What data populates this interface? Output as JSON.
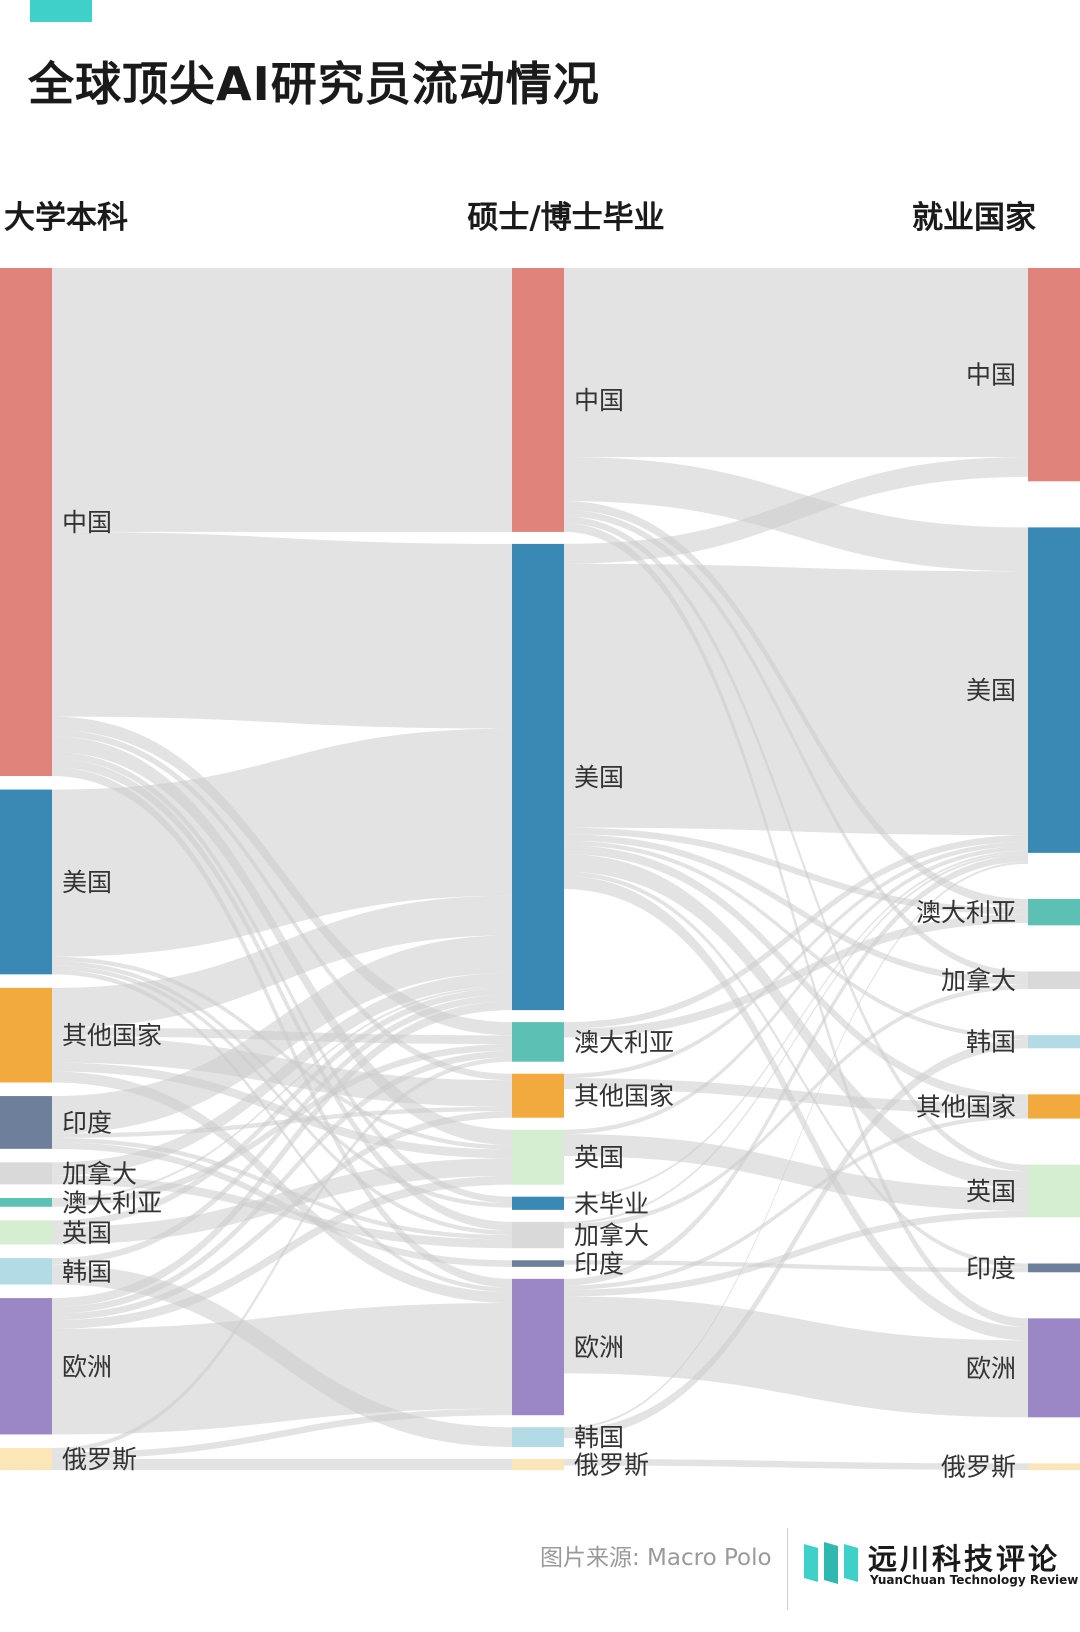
{
  "title": "全球顶尖AI研究员流动情况",
  "accent_color": "#3fd0c9",
  "source": "图片来源: Macro Polo",
  "brand": {
    "name": "远川科技评论",
    "subtitle": "YuanChuan Technology Review"
  },
  "chart_data": {
    "type": "sankey",
    "stages": [
      "大学本科",
      "硕士/博士毕业",
      "就业国家"
    ],
    "flow_color": "#cccccc",
    "nodes": [
      {
        "id": "u_cn",
        "stage": 0,
        "label": "中国",
        "value": 231,
        "color": "#e0837b"
      },
      {
        "id": "u_us",
        "stage": 0,
        "label": "美国",
        "value": 84,
        "color": "#3a89b5"
      },
      {
        "id": "u_ot",
        "stage": 0,
        "label": "其他国家",
        "value": 43,
        "color": "#f2a93e"
      },
      {
        "id": "u_in",
        "stage": 0,
        "label": "印度",
        "value": 24,
        "color": "#6e7f9b"
      },
      {
        "id": "u_ca",
        "stage": 0,
        "label": "加拿大",
        "value": 10,
        "color": "#d9d9d9"
      },
      {
        "id": "u_au",
        "stage": 0,
        "label": "澳大利亚",
        "value": 4,
        "color": "#5cc0b4"
      },
      {
        "id": "u_uk",
        "stage": 0,
        "label": "英国",
        "value": 11,
        "color": "#d5eed2"
      },
      {
        "id": "u_kr",
        "stage": 0,
        "label": "韩国",
        "value": 12,
        "color": "#b3dbe6"
      },
      {
        "id": "u_eu",
        "stage": 0,
        "label": "欧洲",
        "value": 62,
        "color": "#9b86c6"
      },
      {
        "id": "u_ru",
        "stage": 0,
        "label": "俄罗斯",
        "value": 10,
        "color": "#fce6b8"
      },
      {
        "id": "g_cn",
        "stage": 1,
        "label": "中国",
        "value": 120,
        "color": "#e0837b"
      },
      {
        "id": "g_us",
        "stage": 1,
        "label": "美国",
        "value": 212,
        "color": "#3a89b5"
      },
      {
        "id": "g_au",
        "stage": 1,
        "label": "澳大利亚",
        "value": 18,
        "color": "#5cc0b4"
      },
      {
        "id": "g_ot",
        "stage": 1,
        "label": "其他国家",
        "value": 20,
        "color": "#f2a93e"
      },
      {
        "id": "g_uk",
        "stage": 1,
        "label": "英国",
        "value": 25,
        "color": "#d5eed2"
      },
      {
        "id": "g_ng",
        "stage": 1,
        "label": "未毕业",
        "value": 6,
        "color": "#3a89b5"
      },
      {
        "id": "g_ca",
        "stage": 1,
        "label": "加拿大",
        "value": 12,
        "color": "#d9d9d9"
      },
      {
        "id": "g_in",
        "stage": 1,
        "label": "印度",
        "value": 3,
        "color": "#6e7f9b"
      },
      {
        "id": "g_eu",
        "stage": 1,
        "label": "欧洲",
        "value": 62,
        "color": "#9b86c6"
      },
      {
        "id": "g_kr",
        "stage": 1,
        "label": "韩国",
        "value": 9,
        "color": "#b3dbe6"
      },
      {
        "id": "g_ru",
        "stage": 1,
        "label": "俄罗斯",
        "value": 5,
        "color": "#fce6b8"
      },
      {
        "id": "j_cn",
        "stage": 2,
        "label": "中国",
        "value": 97,
        "color": "#e0837b"
      },
      {
        "id": "j_us",
        "stage": 2,
        "label": "美国",
        "value": 148,
        "color": "#3a89b5"
      },
      {
        "id": "j_au",
        "stage": 2,
        "label": "澳大利亚",
        "value": 12,
        "color": "#5cc0b4"
      },
      {
        "id": "j_ca",
        "stage": 2,
        "label": "加拿大",
        "value": 8,
        "color": "#d9d9d9"
      },
      {
        "id": "j_kr",
        "stage": 2,
        "label": "韩国",
        "value": 6,
        "color": "#b3dbe6"
      },
      {
        "id": "j_ot",
        "stage": 2,
        "label": "其他国家",
        "value": 11,
        "color": "#f2a93e"
      },
      {
        "id": "j_uk",
        "stage": 2,
        "label": "英国",
        "value": 24,
        "color": "#d5eed2"
      },
      {
        "id": "j_in",
        "stage": 2,
        "label": "印度",
        "value": 4,
        "color": "#6e7f9b"
      },
      {
        "id": "j_eu",
        "stage": 2,
        "label": "欧洲",
        "value": 45,
        "color": "#9b86c6"
      },
      {
        "id": "j_ru",
        "stage": 2,
        "label": "俄罗斯",
        "value": 3,
        "color": "#fce6b8"
      }
    ],
    "links": [
      {
        "source": "u_cn",
        "target": "g_cn",
        "value": 120
      },
      {
        "source": "u_cn",
        "target": "g_us",
        "value": 84
      },
      {
        "source": "u_cn",
        "target": "g_au",
        "value": 6
      },
      {
        "source": "u_cn",
        "target": "g_uk",
        "value": 7
      },
      {
        "source": "u_cn",
        "target": "g_ca",
        "value": 4
      },
      {
        "source": "u_cn",
        "target": "g_ng",
        "value": 3
      },
      {
        "source": "u_cn",
        "target": "g_eu",
        "value": 4
      },
      {
        "source": "u_cn",
        "target": "g_ot",
        "value": 3
      },
      {
        "source": "u_us",
        "target": "g_us",
        "value": 76
      },
      {
        "source": "u_us",
        "target": "g_uk",
        "value": 2
      },
      {
        "source": "u_us",
        "target": "g_ca",
        "value": 2
      },
      {
        "source": "u_us",
        "target": "g_eu",
        "value": 2
      },
      {
        "source": "u_us",
        "target": "g_ng",
        "value": 2
      },
      {
        "source": "u_ot",
        "target": "g_us",
        "value": 18
      },
      {
        "source": "u_ot",
        "target": "g_ot",
        "value": 12
      },
      {
        "source": "u_ot",
        "target": "g_au",
        "value": 4
      },
      {
        "source": "u_ot",
        "target": "g_uk",
        "value": 4
      },
      {
        "source": "u_ot",
        "target": "g_eu",
        "value": 5
      },
      {
        "source": "u_in",
        "target": "g_us",
        "value": 17
      },
      {
        "source": "u_in",
        "target": "g_in",
        "value": 3
      },
      {
        "source": "u_in",
        "target": "g_ca",
        "value": 2
      },
      {
        "source": "u_in",
        "target": "g_ot",
        "value": 2
      },
      {
        "source": "u_ca",
        "target": "g_ca",
        "value": 4
      },
      {
        "source": "u_ca",
        "target": "g_us",
        "value": 6
      },
      {
        "source": "u_au",
        "target": "g_au",
        "value": 3
      },
      {
        "source": "u_au",
        "target": "g_us",
        "value": 1
      },
      {
        "source": "u_uk",
        "target": "g_uk",
        "value": 8
      },
      {
        "source": "u_uk",
        "target": "g_us",
        "value": 3
      },
      {
        "source": "u_kr",
        "target": "g_kr",
        "value": 9
      },
      {
        "source": "u_kr",
        "target": "g_us",
        "value": 3
      },
      {
        "source": "u_eu",
        "target": "g_eu",
        "value": 48
      },
      {
        "source": "u_eu",
        "target": "g_us",
        "value": 4
      },
      {
        "source": "u_eu",
        "target": "g_uk",
        "value": 4
      },
      {
        "source": "u_eu",
        "target": "g_au",
        "value": 3
      },
      {
        "source": "u_eu",
        "target": "g_ot",
        "value": 3
      },
      {
        "source": "u_ru",
        "target": "g_ru",
        "value": 5
      },
      {
        "source": "u_ru",
        "target": "g_eu",
        "value": 3
      },
      {
        "source": "u_ru",
        "target": "g_au",
        "value": 2
      },
      {
        "source": "g_cn",
        "target": "j_cn",
        "value": 86
      },
      {
        "source": "g_cn",
        "target": "j_us",
        "value": 20
      },
      {
        "source": "g_cn",
        "target": "j_au",
        "value": 4
      },
      {
        "source": "g_cn",
        "target": "j_ca",
        "value": 3
      },
      {
        "source": "g_cn",
        "target": "j_uk",
        "value": 3
      },
      {
        "source": "g_cn",
        "target": "j_eu",
        "value": 4
      },
      {
        "source": "g_us",
        "target": "j_us",
        "value": 120
      },
      {
        "source": "g_us",
        "target": "j_cn",
        "value": 9
      },
      {
        "source": "g_us",
        "target": "j_au",
        "value": 3
      },
      {
        "source": "g_us",
        "target": "j_ca",
        "value": 3
      },
      {
        "source": "g_us",
        "target": "j_kr",
        "value": 2
      },
      {
        "source": "g_us",
        "target": "j_ot",
        "value": 4
      },
      {
        "source": "g_us",
        "target": "j_uk",
        "value": 8
      },
      {
        "source": "g_us",
        "target": "j_eu",
        "value": 6
      },
      {
        "source": "g_us",
        "target": "j_in",
        "value": 2
      },
      {
        "source": "g_au",
        "target": "j_au",
        "value": 4
      },
      {
        "source": "g_au",
        "target": "j_us",
        "value": 3
      },
      {
        "source": "g_ot",
        "target": "j_ot",
        "value": 5
      },
      {
        "source": "g_ot",
        "target": "j_us",
        "value": 2
      },
      {
        "source": "g_uk",
        "target": "j_uk",
        "value": 10
      },
      {
        "source": "g_uk",
        "target": "j_us",
        "value": 2
      },
      {
        "source": "g_ng",
        "target": "j_us",
        "value": 1
      },
      {
        "source": "g_ca",
        "target": "j_ca",
        "value": 2
      },
      {
        "source": "g_ca",
        "target": "j_us",
        "value": 1
      },
      {
        "source": "g_in",
        "target": "j_in",
        "value": 2
      },
      {
        "source": "g_eu",
        "target": "j_eu",
        "value": 35
      },
      {
        "source": "g_eu",
        "target": "j_us",
        "value": 3
      },
      {
        "source": "g_eu",
        "target": "j_uk",
        "value": 3
      },
      {
        "source": "g_eu",
        "target": "j_ot",
        "value": 2
      },
      {
        "source": "g_kr",
        "target": "j_kr",
        "value": 4
      },
      {
        "source": "g_kr",
        "target": "j_us",
        "value": 1
      },
      {
        "source": "g_ru",
        "target": "j_ru",
        "value": 3
      }
    ]
  }
}
